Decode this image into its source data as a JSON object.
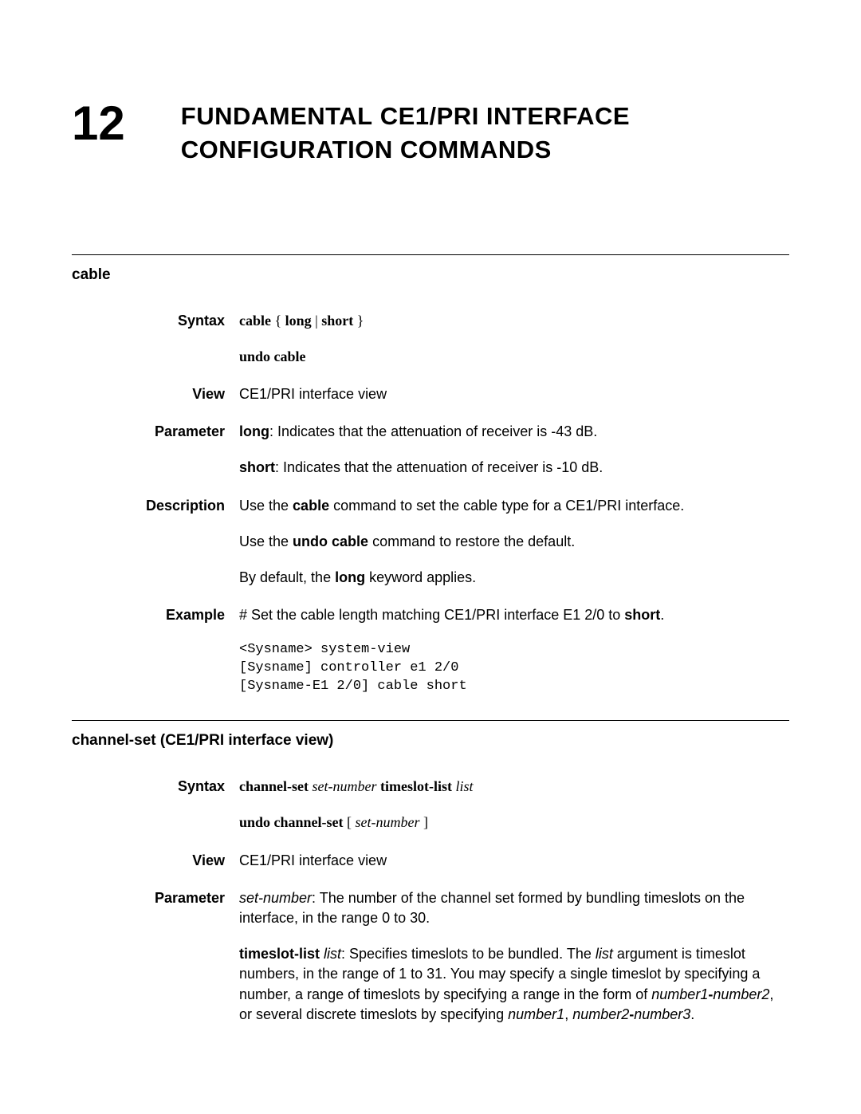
{
  "chapter": {
    "number": "12",
    "title_line1_pre": "F",
    "title_line1_sc": "UNDAMENTAL",
    "title_line1_mid": " CE1/PRI I",
    "title_line1_sc2": "NTERFACE",
    "title_line2_pre": "C",
    "title_line2_sc": "ONFIGURATION",
    "title_line2_mid": " C",
    "title_line2_sc2": "OMMANDS"
  },
  "section1": {
    "heading": "cable",
    "syntax": {
      "label": "Syntax",
      "line1_a": "cable",
      "line1_b": " { ",
      "line1_c": "long",
      "line1_d": " | ",
      "line1_e": "short",
      "line1_f": " }",
      "line2": "undo cable"
    },
    "view": {
      "label": "View",
      "text": "CE1/PRI interface view"
    },
    "parameter": {
      "label": "Parameter",
      "p1_a": "long",
      "p1_b": ": Indicates that the attenuation of receiver is -43 dB.",
      "p2_a": "short",
      "p2_b": ": Indicates that the attenuation of receiver is -10 dB."
    },
    "description": {
      "label": "Description",
      "p1_a": "Use the ",
      "p1_b": "cable",
      "p1_c": " command to set the cable type for a CE1/PRI interface.",
      "p2_a": "Use the ",
      "p2_b": "undo cable",
      "p2_c": " command to restore the default.",
      "p3_a": "By default, the ",
      "p3_b": "long",
      "p3_c": " keyword applies."
    },
    "example": {
      "label": "Example",
      "p1_a": "# Set the cable length matching CE1/PRI interface E1 2/0 to ",
      "p1_b": "short",
      "p1_c": ".",
      "code": "<Sysname> system-view\n[Sysname] controller e1 2/0\n[Sysname-E1 2/0] cable short"
    }
  },
  "section2": {
    "heading": "channel-set (CE1/PRI interface view)",
    "syntax": {
      "label": "Syntax",
      "l1_a": "channel-set",
      "l1_b": " set-number",
      "l1_c": " timeslot-list",
      "l1_d": " list",
      "l2_a": "undo channel-set",
      "l2_b": " [ ",
      "l2_c": "set-number",
      "l2_d": " ]"
    },
    "view": {
      "label": "View",
      "text": "CE1/PRI interface view"
    },
    "parameter": {
      "label": "Parameter",
      "p1_a": "set-number",
      "p1_b": ": The number of the channel set formed by bundling timeslots on the interface, in the range 0 to 30.",
      "p2_a": "timeslot-list",
      "p2_b": " list",
      "p2_c": ": Specifies timeslots to be bundled. The ",
      "p2_d": "list",
      "p2_e": " argument is timeslot numbers, in the range of 1 to 31. You may specify a single timeslot by specifying a number, a range of timeslots by specifying a range in the form of ",
      "p2_f": "number1",
      "p2_g": "-",
      "p2_h": "number2",
      "p2_i": ", or several discrete timeslots by specifying ",
      "p2_j": "number1",
      "p2_k": ", ",
      "p2_l": "number2",
      "p2_m": "-",
      "p2_n": "number3",
      "p2_o": "."
    }
  }
}
